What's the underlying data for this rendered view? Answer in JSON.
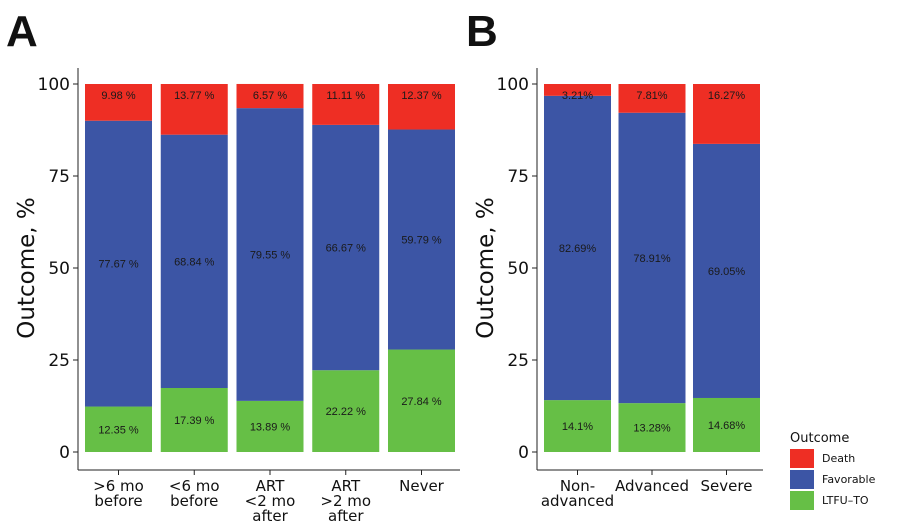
{
  "panel_letters": [
    "A",
    "B"
  ],
  "legend": {
    "title": "Outcome",
    "items": [
      {
        "label": "Death",
        "color": "#ee2e24"
      },
      {
        "label": "Favorable",
        "color": "#3c55a5"
      },
      {
        "label": "LTFU–TO",
        "color": "#66bf46"
      }
    ]
  },
  "chart_data": [
    {
      "type": "bar",
      "stacked": true,
      "panel": "A",
      "ylabel": "Outcome, %",
      "ylim": [
        0,
        100
      ],
      "yticks": [
        "0",
        "25",
        "50",
        "75",
        "100"
      ],
      "categories": [
        [
          ">6 mo",
          "before"
        ],
        [
          "<6 mo",
          "before"
        ],
        [
          "ART",
          "<2 mo",
          "after"
        ],
        [
          "ART",
          ">2 mo",
          "after"
        ],
        [
          "Never"
        ]
      ],
      "series": [
        {
          "name": "LTFU–TO",
          "color": "#66bf46",
          "values": [
            12.35,
            17.39,
            13.89,
            22.22,
            27.84
          ],
          "labels": [
            "12.35 %",
            "17.39 %",
            "13.89 %",
            "22.22 %",
            "27.84 %"
          ]
        },
        {
          "name": "Favorable",
          "color": "#3c55a5",
          "values": [
            77.67,
            68.84,
            79.55,
            66.67,
            59.79
          ],
          "labels": [
            "77.67 %",
            "68.84 %",
            "79.55 %",
            "66.67 %",
            "59.79 %"
          ]
        },
        {
          "name": "Death",
          "color": "#ee2e24",
          "values": [
            9.98,
            13.77,
            6.57,
            11.11,
            12.37
          ],
          "labels": [
            "9.98 %",
            "13.77 %",
            "6.57 %",
            "11.11 %",
            "12.37 %"
          ]
        }
      ]
    },
    {
      "type": "bar",
      "stacked": true,
      "panel": "B",
      "ylabel": "Outcome, %",
      "ylim": [
        0,
        100
      ],
      "yticks": [
        "0",
        "25",
        "50",
        "75",
        "100"
      ],
      "categories": [
        [
          "Non-",
          "advanced"
        ],
        [
          "Advanced"
        ],
        [
          "Severe"
        ]
      ],
      "series": [
        {
          "name": "LTFU–TO",
          "color": "#66bf46",
          "values": [
            14.1,
            13.28,
            14.68
          ],
          "labels": [
            "14.1%",
            "13.28%",
            "14.68%"
          ]
        },
        {
          "name": "Favorable",
          "color": "#3c55a5",
          "values": [
            82.69,
            78.91,
            69.05
          ],
          "labels": [
            "82.69%",
            "78.91%",
            "69.05%"
          ]
        },
        {
          "name": "Death",
          "color": "#ee2e24",
          "values": [
            3.21,
            7.81,
            16.27
          ],
          "labels": [
            "3.21%",
            "7.81%",
            "16.27%"
          ]
        }
      ]
    }
  ]
}
